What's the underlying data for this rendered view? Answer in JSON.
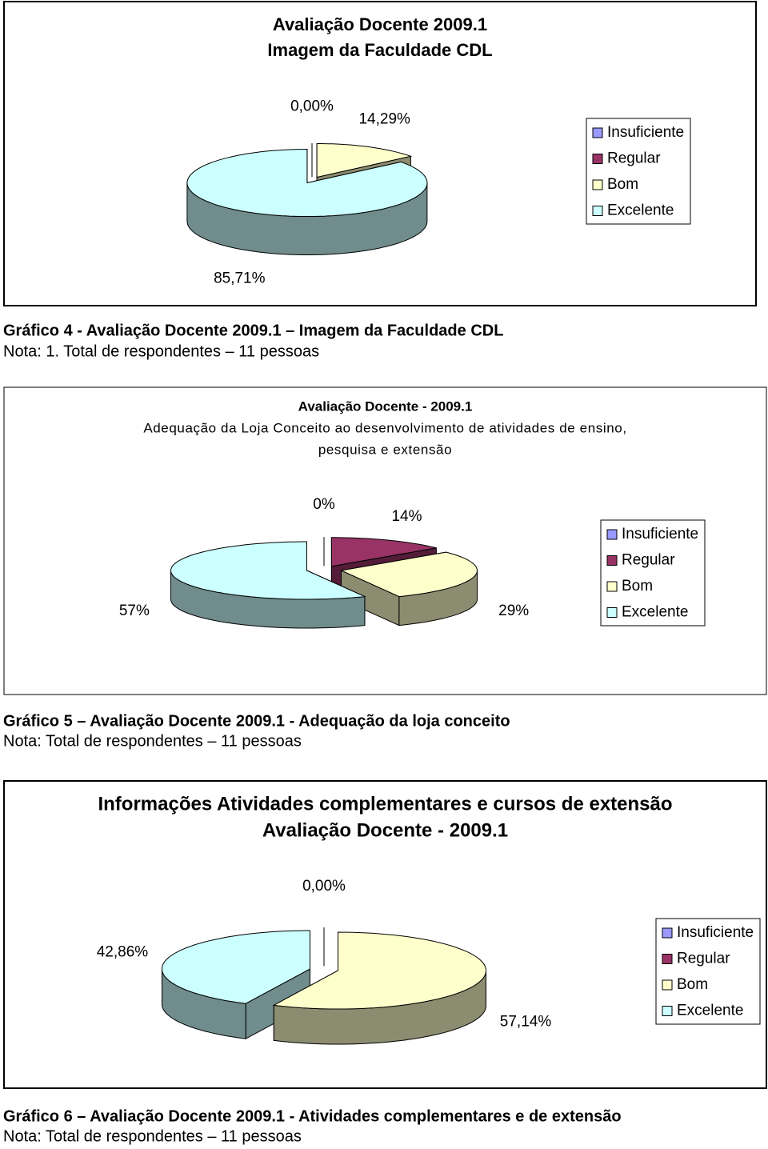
{
  "chart_data": [
    {
      "type": "pie",
      "title": [
        "Avaliação Docente 2009.1",
        "Imagem da Faculdade CDL"
      ],
      "categories": [
        "Insuficiente",
        "Regular",
        "Bom",
        "Excelente"
      ],
      "values": [
        0,
        0,
        14.29,
        85.71
      ],
      "value_labels": [
        "0,00%",
        null,
        "14,29%",
        "85,71%"
      ],
      "colors": [
        "#9999ff",
        "#993366",
        "#ffffcc",
        "#ccffff"
      ],
      "legend": "right",
      "caption": "Gráfico 4 -  Avaliação Docente 2009.1 – Imagem da Faculdade CDL",
      "note": "Nota: 1. Total de respondentes – 11 pessoas"
    },
    {
      "type": "pie",
      "title": [
        "Avaliação Docente - 2009.1"
      ],
      "subtitle": [
        "Adequação da Loja Conceito ao desenvolvimento de atividades de ensino,",
        "pesquisa e extensão"
      ],
      "categories": [
        "Insuficiente",
        "Regular",
        "Bom",
        "Excelente"
      ],
      "values": [
        0,
        14,
        29,
        57
      ],
      "value_labels": [
        "0%",
        "14%",
        "29%",
        "57%"
      ],
      "colors": [
        "#9999ff",
        "#993366",
        "#ffffcc",
        "#ccffff"
      ],
      "legend": "right",
      "caption": "Gráfico 5 – Avaliação Docente 2009.1 - Adequação da loja conceito",
      "note": "Nota: Total de respondentes – 11 pessoas"
    },
    {
      "type": "pie",
      "title": [
        "Informações Atividades complementares e cursos de extensão",
        "Avaliação Docente - 2009.1"
      ],
      "categories": [
        "Insuficiente",
        "Regular",
        "Bom",
        "Excelente"
      ],
      "values": [
        0,
        0,
        57.14,
        42.86
      ],
      "value_labels": [
        "0,00%",
        null,
        "57,14%",
        "42,86%"
      ],
      "colors": [
        "#9999ff",
        "#993366",
        "#ffffcc",
        "#ccffff"
      ],
      "legend": "right",
      "caption": "Gráfico 6 – Avaliação Docente 2009.1 - Atividades complementares e de extensão",
      "note": "Nota: Total de respondentes – 11 pessoas"
    }
  ]
}
